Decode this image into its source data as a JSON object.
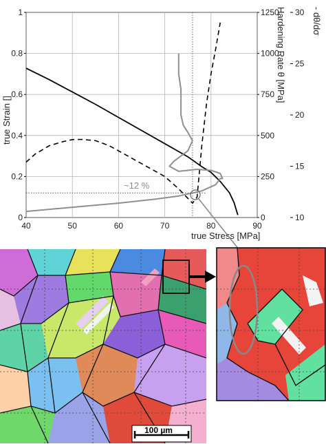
{
  "chart_data": {
    "type": "line",
    "x_axis": {
      "label": "true Stress [MPa]",
      "range": [
        40,
        90
      ],
      "ticks": [
        "40",
        "50",
        "60",
        "70",
        "80",
        "90"
      ]
    },
    "y_axis_left": {
      "label": "true Strain []",
      "range": [
        0,
        1
      ],
      "ticks": [
        "0",
        "0.2",
        "0.4",
        "0.6",
        "0.8",
        "1"
      ]
    },
    "y_axis_right1": {
      "label": "Hardening Rate θ [MPa]",
      "range": [
        0,
        1250
      ],
      "ticks": [
        "0",
        "250",
        "500",
        "750",
        "1000",
        "1250"
      ]
    },
    "y_axis_right2": {
      "label": "- dθ/dσ",
      "range": [
        10,
        30
      ],
      "ticks": [
        "10",
        "15",
        "20",
        "25",
        "30"
      ]
    },
    "series": [
      {
        "axis": "right1",
        "style": "solid-black",
        "x": [
          40,
          45,
          50,
          55,
          60,
          65,
          70,
          75,
          78,
          80,
          82,
          84,
          85,
          85.8
        ],
        "y": [
          910,
          840,
          765,
          690,
          610,
          530,
          450,
          370,
          310,
          275,
          220,
          150,
          90,
          15
        ]
      },
      {
        "axis": "left",
        "style": "dashed-black",
        "x": [
          40,
          42,
          45,
          48,
          50,
          52,
          55,
          58,
          62,
          66,
          70,
          73,
          76,
          77,
          78,
          79,
          80,
          81,
          82
        ],
        "y": [
          0.27,
          0.31,
          0.35,
          0.37,
          0.38,
          0.381,
          0.375,
          0.35,
          0.3,
          0.25,
          0.2,
          0.14,
          0.07,
          0.1,
          0.35,
          0.55,
          0.7,
          0.82,
          0.95
        ]
      },
      {
        "axis": "right2",
        "style": "solid-gray",
        "x": [
          40,
          50,
          60,
          68,
          73,
          78,
          81,
          82,
          82.5,
          82,
          80,
          77,
          73,
          71,
          72,
          75,
          76,
          75,
          74,
          73.5,
          73.5,
          73.5,
          73,
          73,
          73
        ],
        "y": [
          10.6,
          11.0,
          11.4,
          11.8,
          12.1,
          12.6,
          13.2,
          13.8,
          13.8,
          14.3,
          14.6,
          14.7,
          14.5,
          15.0,
          15.5,
          16.5,
          17.5,
          18.3,
          19.0,
          20.0,
          21.0,
          22.5,
          24.0,
          25.0,
          26.0
        ]
      }
    ],
    "reference_line_x": 76,
    "reference_line_y": 0.12,
    "annotation": "~12 %"
  },
  "scale_bar": {
    "label": "100 µm"
  }
}
